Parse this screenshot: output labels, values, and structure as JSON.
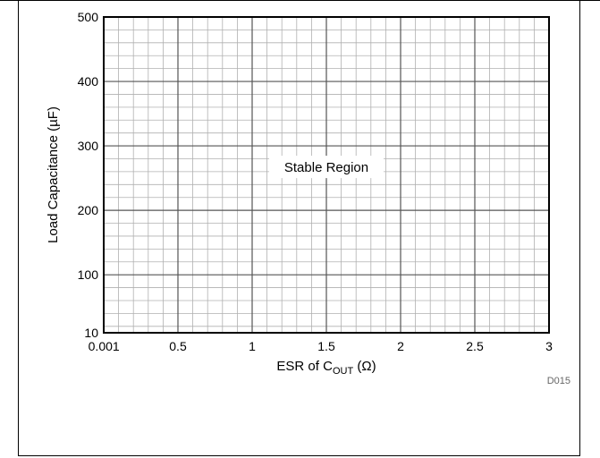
{
  "chart_data": {
    "type": "area",
    "title": "",
    "xlabel": {
      "main": "ESR of C",
      "sub": "OUT",
      "unit": "(Ω)"
    },
    "ylabel": "Load Capacitance (µF)",
    "xlim": [
      0,
      3
    ],
    "ylim": [
      10,
      500
    ],
    "x_ticks": [
      {
        "value": 0.001,
        "label": "0.001"
      },
      {
        "value": 0.5,
        "label": "0.5"
      },
      {
        "value": 1,
        "label": "1"
      },
      {
        "value": 1.5,
        "label": "1.5"
      },
      {
        "value": 2,
        "label": "2"
      },
      {
        "value": 2.5,
        "label": "2.5"
      },
      {
        "value": 3,
        "label": "3"
      }
    ],
    "y_ticks": [
      {
        "value": 10,
        "label": "10"
      },
      {
        "value": 100,
        "label": "100"
      },
      {
        "value": 200,
        "label": "200"
      },
      {
        "value": 300,
        "label": "300"
      },
      {
        "value": 400,
        "label": "400"
      },
      {
        "value": 500,
        "label": "500"
      }
    ],
    "grid": true,
    "annotations": [
      {
        "text": "Stable Region",
        "x": 1.5,
        "y": 225
      }
    ],
    "figure_code": "D015"
  }
}
